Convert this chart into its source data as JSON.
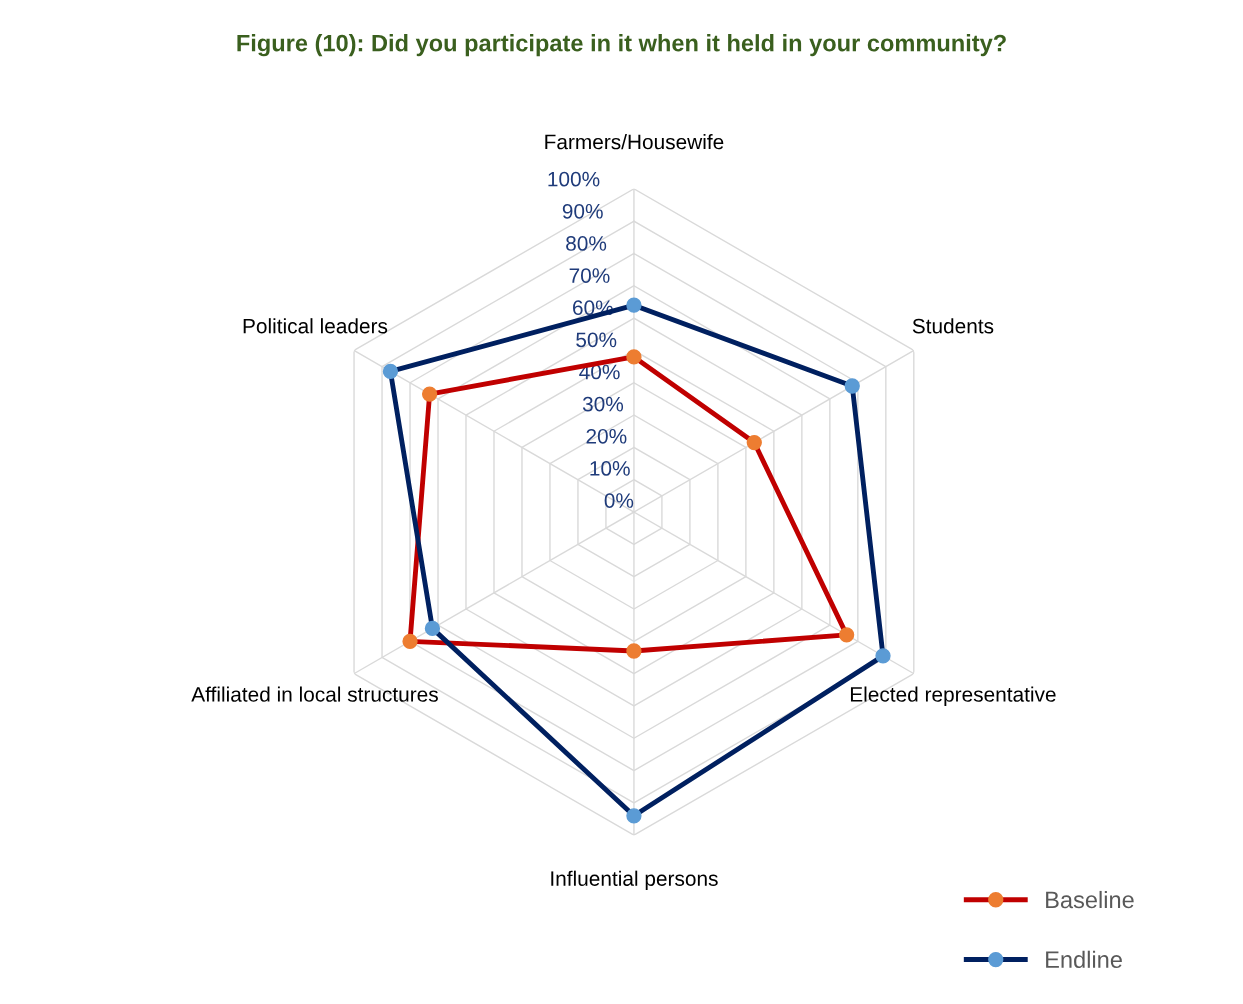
{
  "chart_data": {
    "type": "radar",
    "title": "Figure (10): Did you participate in it when it held in your community?",
    "categories": [
      "Farmers/Housewife",
      "Students",
      "Elected representative",
      "Influential persons",
      "Affiliated in local structures",
      "Political leaders"
    ],
    "series": [
      {
        "name": "Baseline",
        "color": "#c00000",
        "colors": [
          "#ed7d31",
          "#ed7d31",
          "#ed7d31",
          "#ed7d31",
          "#ed7d31",
          "#ed7d31"
        ],
        "values": [
          48,
          43,
          76,
          43,
          80,
          73
        ]
      },
      {
        "name": "Endline",
        "color": "#002060",
        "colors": [
          "#5b9bd5",
          "#5b9bd5",
          "#5b9bd5",
          "#5b9bd5",
          "#5b9bd5",
          "#5b9bd5"
        ],
        "values": [
          64,
          78,
          89,
          94,
          72,
          87
        ]
      }
    ],
    "ylim": [
      0,
      100
    ],
    "yticks": [
      {
        "value": 0,
        "label": "0%"
      },
      {
        "value": 10,
        "label": "10%"
      },
      {
        "value": 20,
        "label": "20%"
      },
      {
        "value": 30,
        "label": "30%"
      },
      {
        "value": 40,
        "label": "40%"
      },
      {
        "value": 50,
        "label": "50%"
      },
      {
        "value": 60,
        "label": "60%"
      },
      {
        "value": 70,
        "label": "70%"
      },
      {
        "value": 80,
        "label": "80%"
      },
      {
        "value": 90,
        "label": "90%"
      },
      {
        "value": 100,
        "label": "100%"
      }
    ],
    "grid": true,
    "legend": "bottom right",
    "marker": "circle",
    "line_style": "solid"
  }
}
